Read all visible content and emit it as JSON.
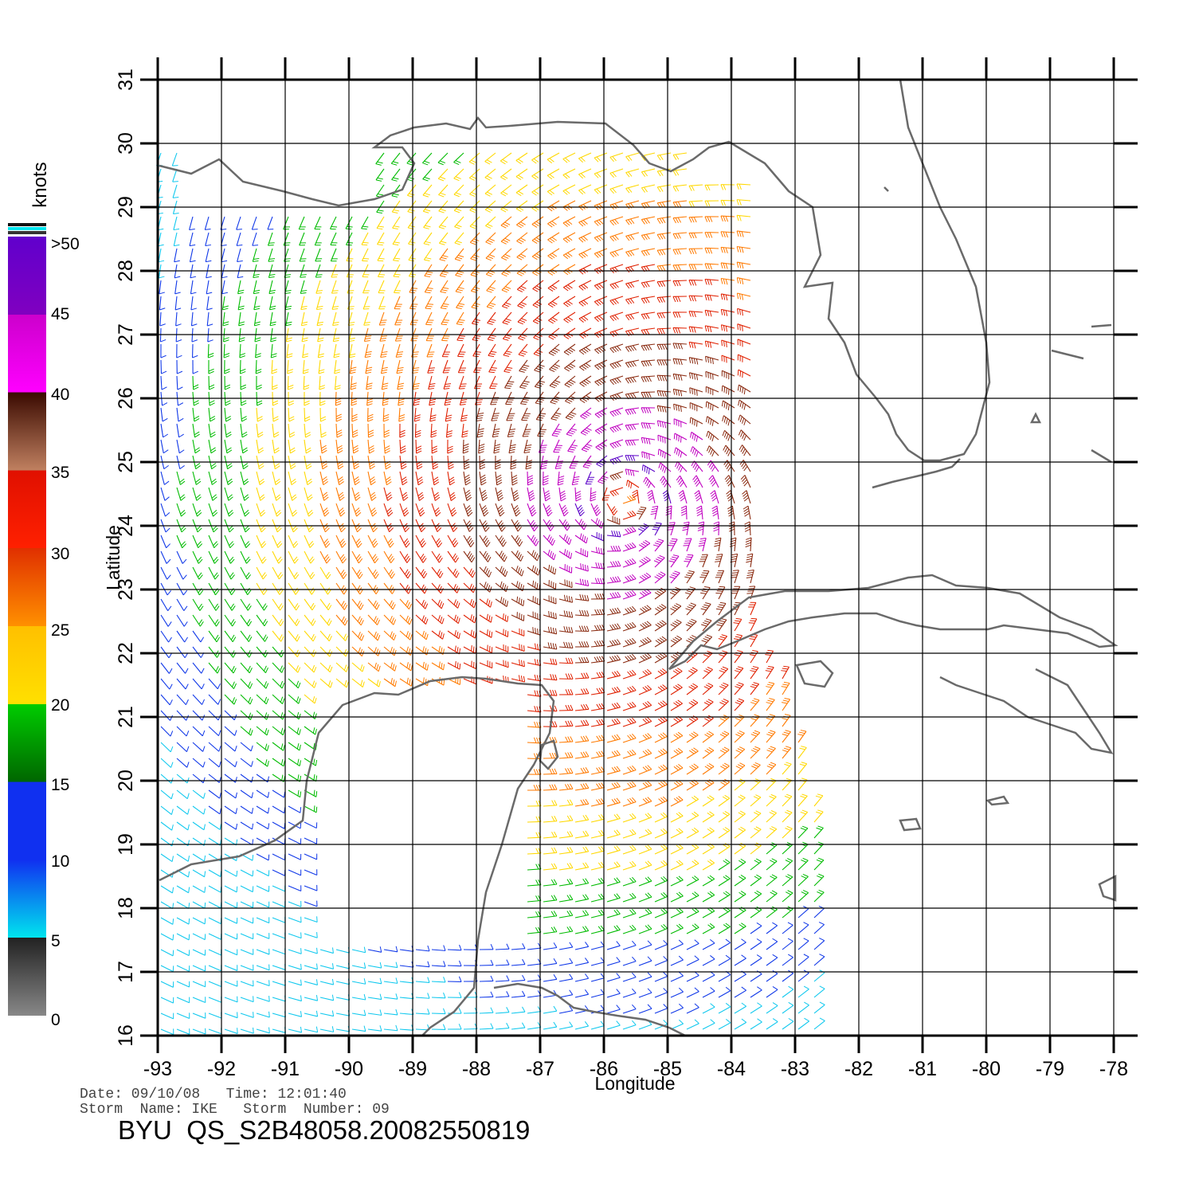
{
  "map": {
    "x_axis_label": "Longitude",
    "y_axis_label": "Latitude",
    "lon_ticks": [
      "-93",
      "-92",
      "-91",
      "-90",
      "-89",
      "-88",
      "-87",
      "-86",
      "-85",
      "-84",
      "-83",
      "-82",
      "-81",
      "-80",
      "-79",
      "-78"
    ],
    "lat_ticks": [
      "16",
      "17",
      "18",
      "19",
      "20",
      "21",
      "22",
      "23",
      "24",
      "25",
      "26",
      "27",
      "28",
      "29",
      "30",
      "31"
    ],
    "lon_range": [
      -93,
      -78
    ],
    "lat_range": [
      16,
      31
    ],
    "grid": true,
    "coastline_color": "#6a6a6a",
    "storm_center": {
      "lon": -85.7,
      "lat": 24.4
    }
  },
  "legend": {
    "unit": "knots",
    "labels": [
      ">50",
      "45",
      "40",
      "35",
      "30",
      "25",
      "20",
      "15",
      "10",
      "5",
      "0"
    ],
    "colors": {
      "gray": "#555555",
      "cyan": "#00e5ee",
      "blue": "#1030f0",
      "green": "#00cc00",
      "yellow": "#ffe000",
      "orange": "#ff8000",
      "red": "#e01000",
      "brown": "#7a2a10",
      "magenta": "#cc00cc",
      "purple": "#6000cc"
    }
  },
  "footer": {
    "date_line": "Date: 09/10/08   Time: 12:01:40",
    "storm_line": "Storm  Name: IKE   Storm  Number: 09",
    "product_id": "BYU  QS_S2B48058.20082550819"
  }
}
